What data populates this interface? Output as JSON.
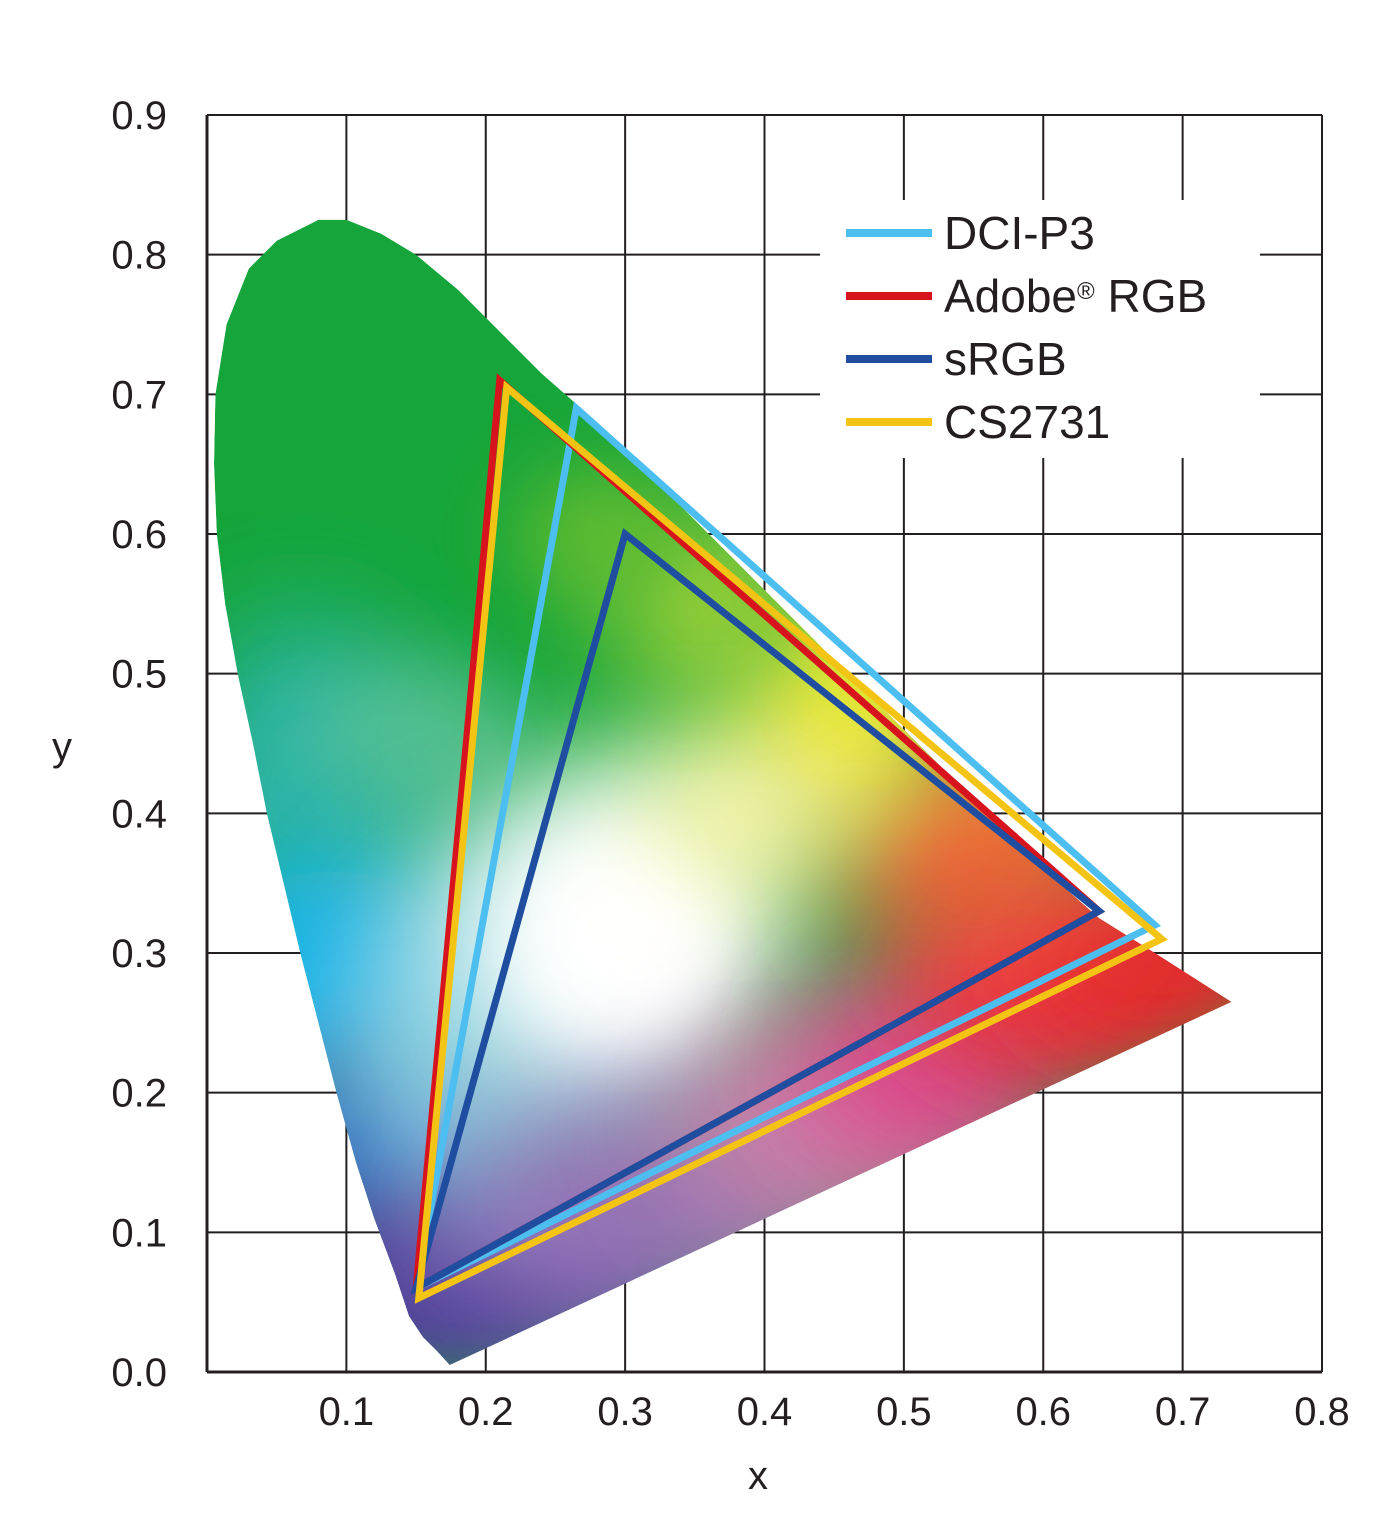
{
  "chart_data": {
    "type": "scatter",
    "title": "",
    "xlabel": "x",
    "ylabel": "y",
    "xlim": [
      0.0,
      0.8
    ],
    "ylim": [
      0.0,
      0.9
    ],
    "x_ticks": [
      "0.1",
      "0.2",
      "0.3",
      "0.4",
      "0.5",
      "0.6",
      "0.7",
      "0.8"
    ],
    "y_ticks": [
      "0.0",
      "0.1",
      "0.2",
      "0.3",
      "0.4",
      "0.5",
      "0.6",
      "0.7",
      "0.8",
      "0.9"
    ],
    "grid": true,
    "legend_position": "top-right",
    "spectral_locus": [
      [
        0.1741,
        0.005
      ],
      [
        0.165,
        0.015
      ],
      [
        0.155,
        0.025
      ],
      [
        0.145,
        0.04
      ],
      [
        0.135,
        0.07
      ],
      [
        0.12,
        0.11
      ],
      [
        0.107,
        0.15
      ],
      [
        0.093,
        0.2
      ],
      [
        0.08,
        0.25
      ],
      [
        0.067,
        0.3
      ],
      [
        0.055,
        0.35
      ],
      [
        0.043,
        0.4
      ],
      [
        0.033,
        0.45
      ],
      [
        0.022,
        0.5
      ],
      [
        0.013,
        0.55
      ],
      [
        0.007,
        0.6
      ],
      [
        0.005,
        0.65
      ],
      [
        0.006,
        0.7
      ],
      [
        0.014,
        0.75
      ],
      [
        0.03,
        0.79
      ],
      [
        0.05,
        0.81
      ],
      [
        0.08,
        0.825
      ],
      [
        0.1,
        0.825
      ],
      [
        0.125,
        0.815
      ],
      [
        0.15,
        0.8
      ],
      [
        0.18,
        0.775
      ],
      [
        0.21,
        0.745
      ],
      [
        0.24,
        0.715
      ],
      [
        0.28,
        0.68
      ],
      [
        0.32,
        0.64
      ],
      [
        0.36,
        0.6
      ],
      [
        0.4,
        0.56
      ],
      [
        0.44,
        0.52
      ],
      [
        0.48,
        0.48
      ],
      [
        0.52,
        0.44
      ],
      [
        0.56,
        0.4
      ],
      [
        0.6,
        0.36
      ],
      [
        0.64,
        0.325
      ],
      [
        0.68,
        0.3
      ],
      [
        0.735,
        0.265
      ]
    ],
    "series": [
      {
        "name": "DCI-P3",
        "color": "#4dbef0",
        "points": [
          [
            0.68,
            0.32
          ],
          [
            0.265,
            0.69
          ],
          [
            0.15,
            0.06
          ]
        ]
      },
      {
        "name": "Adobe® RGB",
        "color": "#d7141e",
        "points": [
          [
            0.64,
            0.33
          ],
          [
            0.21,
            0.71
          ],
          [
            0.15,
            0.06
          ]
        ]
      },
      {
        "name": "sRGB",
        "color": "#1f4da0",
        "points": [
          [
            0.64,
            0.33
          ],
          [
            0.3,
            0.6
          ],
          [
            0.15,
            0.06
          ]
        ]
      },
      {
        "name": "CS2731",
        "color": "#f4c414",
        "points": [
          [
            0.685,
            0.31
          ],
          [
            0.215,
            0.705
          ],
          [
            0.152,
            0.053
          ]
        ]
      }
    ],
    "legend": {
      "entries": [
        {
          "label": "DCI-P3",
          "color": "#4dbef0"
        },
        {
          "label": "Adobe",
          "sup": "®",
          "suffix": " RGB",
          "color": "#d7141e"
        },
        {
          "label": "sRGB",
          "color": "#1f4da0"
        },
        {
          "label": "CS2731",
          "color": "#f4c414"
        }
      ]
    }
  }
}
